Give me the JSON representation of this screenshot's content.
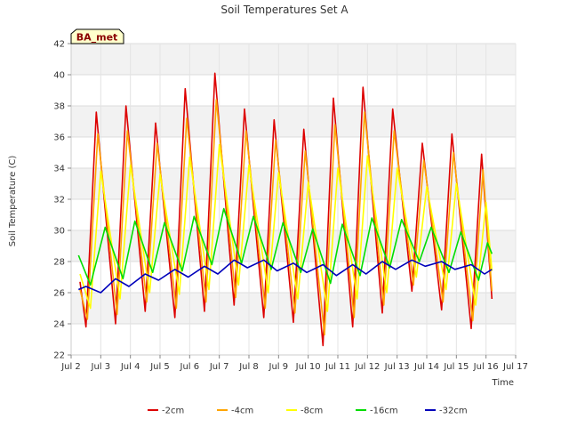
{
  "chart_data": {
    "type": "line",
    "title": "Soil Temperatures Set A",
    "xlabel": "Time",
    "ylabel": "Soil Temperature (C)",
    "site_label": "BA_met",
    "xlim": [
      2,
      17
    ],
    "ylim": [
      22,
      42
    ],
    "x_ticks": [
      {
        "value": 2,
        "label": "Jul 2"
      },
      {
        "value": 3,
        "label": "Jul 3"
      },
      {
        "value": 4,
        "label": "Jul 4"
      },
      {
        "value": 5,
        "label": "Jul 5"
      },
      {
        "value": 6,
        "label": "Jul 6"
      },
      {
        "value": 7,
        "label": "Jul 7"
      },
      {
        "value": 8,
        "label": "Jul 8"
      },
      {
        "value": 9,
        "label": "Jul 9"
      },
      {
        "value": 10,
        "label": "Jul 10"
      },
      {
        "value": 11,
        "label": "Jul 11"
      },
      {
        "value": 12,
        "label": "Jul 12"
      },
      {
        "value": 13,
        "label": "Jul 13"
      },
      {
        "value": 14,
        "label": "Jul 14"
      },
      {
        "value": 15,
        "label": "Jul 15"
      },
      {
        "value": 16,
        "label": "Jul 16"
      },
      {
        "value": 17,
        "label": "Jul 17"
      }
    ],
    "y_ticks": [
      {
        "value": 22,
        "label": "22"
      },
      {
        "value": 24,
        "label": "24"
      },
      {
        "value": 26,
        "label": "26"
      },
      {
        "value": 28,
        "label": "28"
      },
      {
        "value": 30,
        "label": "30"
      },
      {
        "value": 32,
        "label": "32"
      },
      {
        "value": 34,
        "label": "34"
      },
      {
        "value": 36,
        "label": "36"
      },
      {
        "value": 38,
        "label": "38"
      },
      {
        "value": 40,
        "label": "40"
      },
      {
        "value": 42,
        "label": "42"
      }
    ],
    "grid": true,
    "legend_position": "bottom",
    "series": [
      {
        "name": "-2cm",
        "color": "#dd0000",
        "points": [
          [
            2.3,
            26.7
          ],
          [
            2.5,
            23.8
          ],
          [
            2.85,
            37.6
          ],
          [
            3.5,
            24.0
          ],
          [
            3.85,
            38.0
          ],
          [
            4.5,
            24.8
          ],
          [
            4.85,
            36.9
          ],
          [
            5.5,
            24.4
          ],
          [
            5.85,
            39.1
          ],
          [
            6.5,
            24.8
          ],
          [
            6.85,
            40.1
          ],
          [
            7.5,
            25.2
          ],
          [
            7.85,
            37.8
          ],
          [
            8.5,
            24.4
          ],
          [
            8.85,
            37.1
          ],
          [
            9.5,
            24.1
          ],
          [
            9.85,
            36.5
          ],
          [
            10.5,
            22.6
          ],
          [
            10.85,
            38.5
          ],
          [
            11.5,
            23.8
          ],
          [
            11.85,
            39.2
          ],
          [
            12.5,
            24.7
          ],
          [
            12.85,
            37.8
          ],
          [
            13.5,
            26.1
          ],
          [
            13.85,
            35.6
          ],
          [
            14.5,
            24.9
          ],
          [
            14.85,
            36.2
          ],
          [
            15.5,
            23.7
          ],
          [
            15.85,
            34.9
          ],
          [
            16.2,
            25.6
          ]
        ]
      },
      {
        "name": "-4cm",
        "color": "#ffa500",
        "points": [
          [
            2.3,
            26.2
          ],
          [
            2.55,
            24.3
          ],
          [
            2.9,
            36.2
          ],
          [
            3.55,
            24.6
          ],
          [
            3.9,
            36.4
          ],
          [
            4.55,
            25.4
          ],
          [
            4.9,
            35.6
          ],
          [
            5.55,
            25.0
          ],
          [
            5.9,
            37.2
          ],
          [
            6.55,
            25.4
          ],
          [
            6.9,
            38.4
          ],
          [
            7.55,
            25.7
          ],
          [
            7.9,
            36.4
          ],
          [
            8.55,
            25.0
          ],
          [
            8.9,
            35.8
          ],
          [
            9.55,
            24.7
          ],
          [
            9.9,
            35.1
          ],
          [
            10.55,
            23.3
          ],
          [
            10.9,
            36.8
          ],
          [
            11.55,
            24.4
          ],
          [
            11.9,
            37.6
          ],
          [
            12.55,
            25.2
          ],
          [
            12.9,
            36.4
          ],
          [
            13.55,
            26.5
          ],
          [
            13.9,
            34.5
          ],
          [
            14.55,
            25.4
          ],
          [
            14.9,
            35.0
          ],
          [
            15.55,
            24.2
          ],
          [
            15.9,
            33.9
          ],
          [
            16.2,
            26.1
          ]
        ]
      },
      {
        "name": "-8cm",
        "color": "#ffff00",
        "points": [
          [
            2.3,
            27.2
          ],
          [
            2.65,
            25.0
          ],
          [
            3.0,
            33.8
          ],
          [
            3.65,
            25.6
          ],
          [
            4.0,
            34.2
          ],
          [
            4.65,
            26.0
          ],
          [
            5.0,
            33.6
          ],
          [
            5.65,
            25.9
          ],
          [
            6.0,
            34.7
          ],
          [
            6.65,
            26.2
          ],
          [
            7.0,
            35.5
          ],
          [
            7.65,
            26.5
          ],
          [
            8.0,
            34.2
          ],
          [
            8.65,
            26.0
          ],
          [
            9.0,
            33.7
          ],
          [
            9.65,
            25.6
          ],
          [
            10.0,
            33.1
          ],
          [
            10.65,
            24.8
          ],
          [
            11.0,
            34.0
          ],
          [
            11.65,
            25.6
          ],
          [
            12.0,
            34.8
          ],
          [
            12.65,
            26.0
          ],
          [
            13.0,
            34.0
          ],
          [
            13.65,
            27.0
          ],
          [
            14.0,
            32.8
          ],
          [
            14.65,
            26.2
          ],
          [
            15.0,
            33.0
          ],
          [
            15.65,
            25.2
          ],
          [
            16.0,
            31.8
          ],
          [
            16.2,
            27.4
          ]
        ]
      },
      {
        "name": "-16cm",
        "color": "#00dd00",
        "points": [
          [
            2.25,
            28.4
          ],
          [
            2.65,
            26.5
          ],
          [
            3.15,
            30.2
          ],
          [
            3.75,
            26.9
          ],
          [
            4.15,
            30.6
          ],
          [
            4.75,
            27.3
          ],
          [
            5.15,
            30.5
          ],
          [
            5.75,
            27.4
          ],
          [
            6.15,
            30.9
          ],
          [
            6.75,
            27.8
          ],
          [
            7.15,
            31.4
          ],
          [
            7.75,
            27.9
          ],
          [
            8.15,
            30.9
          ],
          [
            8.75,
            27.5
          ],
          [
            9.15,
            30.5
          ],
          [
            9.75,
            27.3
          ],
          [
            10.15,
            30.1
          ],
          [
            10.75,
            26.6
          ],
          [
            11.15,
            30.4
          ],
          [
            11.75,
            27.1
          ],
          [
            12.15,
            30.8
          ],
          [
            12.75,
            27.6
          ],
          [
            13.15,
            30.7
          ],
          [
            13.75,
            28.0
          ],
          [
            14.15,
            30.2
          ],
          [
            14.75,
            27.3
          ],
          [
            15.15,
            29.9
          ],
          [
            15.75,
            26.8
          ],
          [
            16.05,
            29.2
          ],
          [
            16.2,
            28.5
          ]
        ]
      },
      {
        "name": "-32cm",
        "color": "#0000bb",
        "points": [
          [
            2.25,
            26.2
          ],
          [
            2.5,
            26.4
          ],
          [
            3.0,
            26.0
          ],
          [
            3.5,
            26.9
          ],
          [
            3.95,
            26.4
          ],
          [
            4.5,
            27.2
          ],
          [
            4.95,
            26.8
          ],
          [
            5.5,
            27.5
          ],
          [
            5.95,
            27.0
          ],
          [
            6.5,
            27.7
          ],
          [
            6.95,
            27.2
          ],
          [
            7.5,
            28.1
          ],
          [
            7.95,
            27.6
          ],
          [
            8.5,
            28.1
          ],
          [
            8.95,
            27.4
          ],
          [
            9.5,
            27.9
          ],
          [
            9.95,
            27.3
          ],
          [
            10.5,
            27.8
          ],
          [
            10.95,
            27.1
          ],
          [
            11.5,
            27.8
          ],
          [
            11.95,
            27.2
          ],
          [
            12.5,
            28.0
          ],
          [
            12.95,
            27.5
          ],
          [
            13.5,
            28.1
          ],
          [
            13.95,
            27.7
          ],
          [
            14.5,
            28.0
          ],
          [
            14.95,
            27.5
          ],
          [
            15.5,
            27.8
          ],
          [
            15.95,
            27.2
          ],
          [
            16.2,
            27.5
          ]
        ]
      }
    ]
  }
}
